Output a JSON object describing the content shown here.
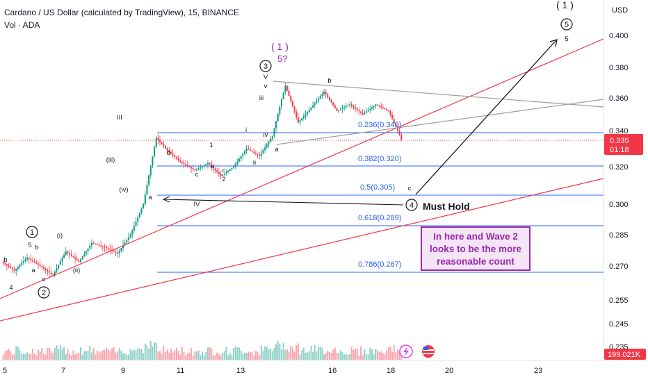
{
  "header": {
    "title": "Cardano / US Dollar (calculated by TradingView), 15, BINANCE",
    "volume_label": "Vol · ADA"
  },
  "price_axis": {
    "currency": "USD",
    "current_price": "0.335",
    "countdown": "01:18",
    "volume_value": "199.021K"
  },
  "colors": {
    "fib": "#2962ff",
    "trend": "#f23645",
    "candle_up": "#089981",
    "candle_down": "#f23645",
    "annotation_purple": "#9c27b0",
    "gray_line": "#9e9e9e"
  },
  "note": {
    "lines": [
      "In here and Wave 2",
      "looks to be the more",
      "reasonable count"
    ]
  },
  "icons": [
    "lightning-icon",
    "us-flag-icon"
  ],
  "chart_data": {
    "type": "candlestick",
    "symbol": "ADAUSD",
    "interval": "15",
    "y_ticks": [
      "0.400",
      "0.380",
      "0.360",
      "0.340",
      "0.320",
      "0.300",
      "0.285",
      "0.270",
      "0.255",
      "0.245",
      "0.235"
    ],
    "x_ticks": [
      "5",
      "7",
      "9",
      "11",
      "13",
      "16",
      "18",
      "20",
      "23"
    ],
    "price_path": [
      [
        "5",
        0.272
      ],
      [
        "5",
        0.268
      ],
      [
        "5",
        0.274
      ],
      [
        "5",
        0.27
      ],
      [
        "5",
        0.266
      ],
      [
        "7",
        0.277
      ],
      [
        "7",
        0.272
      ],
      [
        "7",
        0.281
      ],
      [
        "7",
        0.279
      ],
      [
        "7",
        0.276
      ],
      [
        "9",
        0.285
      ],
      [
        "9",
        0.3
      ],
      [
        "9",
        0.336
      ],
      [
        "9",
        0.328
      ],
      [
        "9",
        0.322
      ],
      [
        "11",
        0.318
      ],
      [
        "11",
        0.322
      ],
      [
        "11",
        0.315
      ],
      [
        "11",
        0.32
      ],
      [
        "11",
        0.33
      ],
      [
        "13",
        0.326
      ],
      [
        "13",
        0.337
      ],
      [
        "13",
        0.368
      ],
      [
        "13",
        0.345
      ],
      [
        "13",
        0.354
      ],
      [
        "16",
        0.364
      ],
      [
        "16",
        0.352
      ],
      [
        "16",
        0.356
      ],
      [
        "16",
        0.35
      ],
      [
        "16",
        0.356
      ],
      [
        "18",
        0.352
      ],
      [
        "18",
        0.335
      ]
    ],
    "fib_levels": [
      {
        "label": "0.236(0.340)",
        "value": 0.34
      },
      {
        "label": "0.382(0.320)",
        "value": 0.32
      },
      {
        "label": "0.5(0.305)",
        "value": 0.305
      },
      {
        "label": "0.618(0.289)",
        "value": 0.289
      },
      {
        "label": "0.786(0.267)",
        "value": 0.267
      }
    ],
    "wave_labels": {
      "circled": [
        "1",
        "2",
        "3",
        "4",
        "5"
      ],
      "top": [
        "( 1 )",
        "( 1 )",
        "5?"
      ],
      "minor": [
        "5",
        "b",
        "a",
        "c",
        "4",
        "b",
        "(i)",
        "(ii)",
        "III",
        "(iii)",
        "(iv)",
        "a",
        "b",
        "IV",
        "c",
        "1",
        "a",
        "c",
        "2",
        "i",
        "ii",
        "iii",
        "iv",
        "v",
        "V",
        "a",
        "b",
        "c",
        "5"
      ]
    },
    "annotations": [
      "Must Hold"
    ]
  }
}
